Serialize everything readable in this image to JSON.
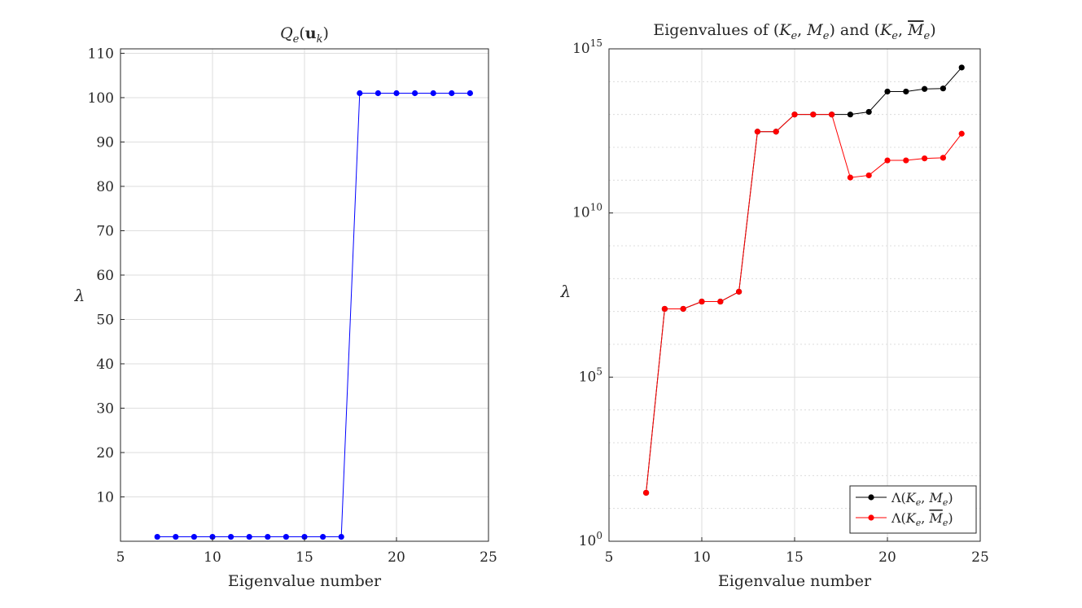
{
  "chart_data": [
    {
      "type": "line",
      "title": "Q_e(u_k)",
      "title_parts": {
        "main": "Q",
        "sub_e": "e",
        "open": "(",
        "bold_u": "u",
        "sub_k": "k",
        "close": ")"
      },
      "xlabel": "Eigenvalue number",
      "ylabel": "λ",
      "xlim": [
        5,
        25
      ],
      "ylim": [
        0,
        111
      ],
      "xticks": [
        5,
        10,
        15,
        20,
        25
      ],
      "yticks": [
        10,
        20,
        30,
        40,
        50,
        60,
        70,
        80,
        90,
        100,
        110
      ],
      "yscale": "linear",
      "grid": true,
      "series": [
        {
          "name": "Q_e(u_k)",
          "color": "#0000ff",
          "x": [
            7,
            8,
            9,
            10,
            11,
            12,
            13,
            14,
            15,
            16,
            17,
            18,
            19,
            20,
            21,
            22,
            23,
            24
          ],
          "values": [
            1,
            1,
            1,
            1,
            1,
            1,
            1,
            1,
            1,
            1,
            1,
            101,
            101,
            101,
            101,
            101,
            101,
            101
          ]
        }
      ]
    },
    {
      "type": "line",
      "title": "Eigenvalues of (K_e, M_e) and (K_e, M̄_e)",
      "title_parts": {
        "lead": "Eigenvalues of",
        "and": "and"
      },
      "xlabel": "Eigenvalue number",
      "ylabel": "λ",
      "xlim": [
        5,
        25
      ],
      "ylim": [
        1,
        1000000000000000.0
      ],
      "yscale": "log",
      "xticks": [
        5,
        10,
        15,
        20,
        25
      ],
      "yticks": [
        {
          "base": "10",
          "exp": "0",
          "value": 1
        },
        {
          "base": "10",
          "exp": "5",
          "value": 100000
        },
        {
          "base": "10",
          "exp": "10",
          "value": 10000000000
        },
        {
          "base": "10",
          "exp": "15",
          "value": 1000000000000000
        }
      ],
      "grid": true,
      "legend_position": "bottom-right",
      "series": [
        {
          "name": "Λ(K_e, M_e)",
          "color": "#000000",
          "x": [
            7,
            8,
            9,
            10,
            11,
            12,
            13,
            14,
            15,
            16,
            17,
            18,
            19,
            20,
            21,
            22,
            23,
            24
          ],
          "values": [
            30,
            12000000.0,
            12000000.0,
            20000000.0,
            20000000.0,
            40000000.0,
            3000000000000.0,
            3000000000000.0,
            10000000000000.0,
            10000000000000.0,
            10000000000000.0,
            10000000000000.0,
            12000000000000.0,
            50000000000000.0,
            50000000000000.0,
            60000000000000.0,
            62000000000000.0,
            270000000000000.0
          ]
        },
        {
          "name": "Λ(K_e, M̄_e)",
          "color": "#ff0000",
          "x": [
            7,
            8,
            9,
            10,
            11,
            12,
            13,
            14,
            15,
            16,
            17,
            18,
            19,
            20,
            21,
            22,
            23,
            24
          ],
          "values": [
            30,
            12000000.0,
            12000000.0,
            20000000.0,
            20000000.0,
            40000000.0,
            3000000000000.0,
            3000000000000.0,
            10000000000000.0,
            10000000000000.0,
            10000000000000.0,
            120000000000.0,
            140000000000.0,
            400000000000.0,
            400000000000.0,
            460000000000.0,
            480000000000.0,
            2600000000000.0
          ]
        }
      ]
    }
  ]
}
